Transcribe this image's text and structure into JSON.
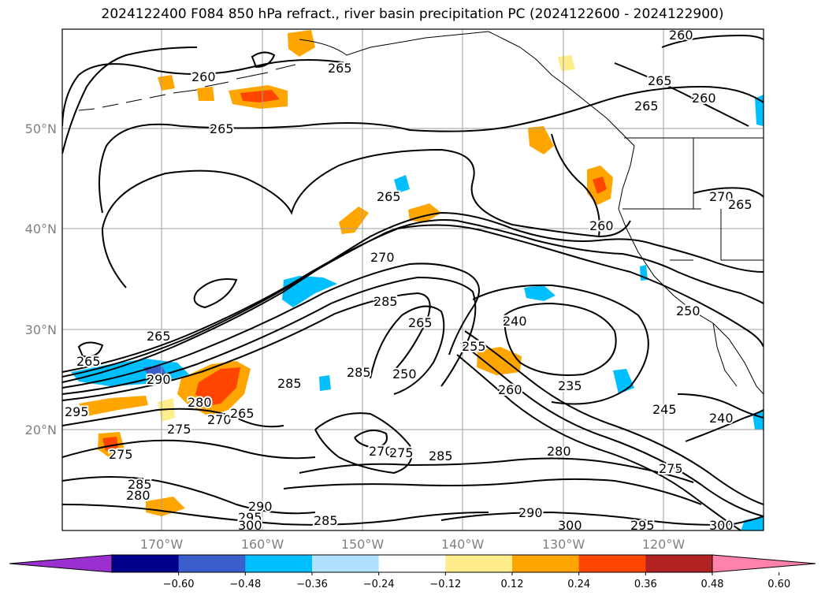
{
  "title": "2024122400 F084 850 hPa refract., river basin precipitation PC (2024122600 - 2024122900)",
  "map": {
    "lat_labels": [
      "50°N",
      "40°N",
      "30°N",
      "20°N"
    ],
    "lon_labels": [
      "170°W",
      "160°W",
      "150°W",
      "140°W",
      "130°W",
      "120°W"
    ],
    "contour_labels": [
      "260",
      "265",
      "260",
      "265",
      "265",
      "260",
      "265",
      "265",
      "260",
      "270",
      "270",
      "265",
      "285",
      "265",
      "265",
      "285",
      "250",
      "255",
      "240",
      "235",
      "260",
      "250",
      "290",
      "295",
      "285",
      "280",
      "275",
      "270",
      "265",
      "275",
      "285",
      "280",
      "290",
      "295",
      "300",
      "285",
      "270",
      "275",
      "285",
      "280",
      "290",
      "300",
      "295",
      "300",
      "245",
      "240",
      "275",
      "265"
    ]
  },
  "colorbar": {
    "colors": [
      "#9b30d0",
      "#00008b",
      "#3a5fcd",
      "#00bfff",
      "#b0e2ff",
      "#ffffff",
      "#ffec8b",
      "#ffa500",
      "#ff4500",
      "#b22222",
      "#ff82ab"
    ],
    "ticks": [
      "−0.60",
      "−0.48",
      "−0.36",
      "−0.24",
      "−0.12",
      "0.12",
      "0.24",
      "0.36",
      "0.48",
      "0.60"
    ]
  }
}
